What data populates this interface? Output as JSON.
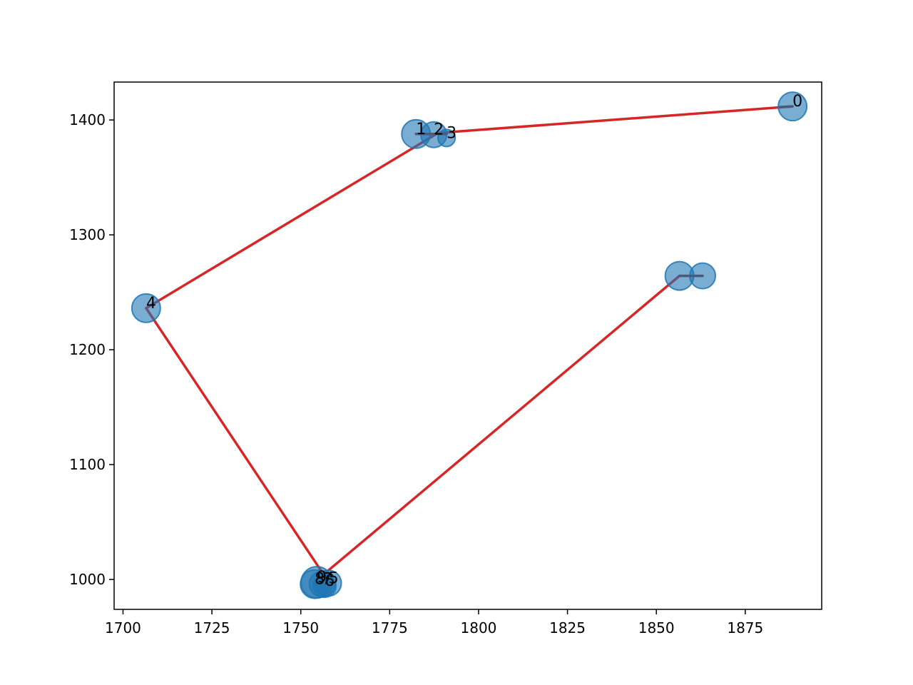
{
  "chart_data": {
    "type": "scatter",
    "title": "",
    "xlabel": "",
    "ylabel": "",
    "xlim": [
      1697.5,
      1896.5
    ],
    "ylim": [
      974,
      1433
    ],
    "x_ticks": [
      1700,
      1725,
      1750,
      1775,
      1800,
      1825,
      1850,
      1875
    ],
    "y_ticks": [
      1000,
      1100,
      1200,
      1300,
      1400
    ],
    "grid": false,
    "legend": "none",
    "points": [
      {
        "label": "0",
        "x": 1888.3,
        "y": 1411.8,
        "size": 20
      },
      {
        "label": "1",
        "x": 1782.4,
        "y": 1387.8,
        "size": 20
      },
      {
        "label": "2",
        "x": 1787.4,
        "y": 1387.2,
        "size": 18
      },
      {
        "label": "3",
        "x": 1791.0,
        "y": 1384.3,
        "size": 12
      },
      {
        "label": "4",
        "x": 1706.5,
        "y": 1236.2,
        "size": 20
      },
      {
        "label": "5",
        "x": 1757.8,
        "y": 996.8,
        "size": 18
      },
      {
        "label": "6",
        "x": 1756.7,
        "y": 994.4,
        "size": 16
      },
      {
        "label": "7",
        "x": 1756.0,
        "y": 996.0,
        "size": 18
      },
      {
        "label": "8",
        "x": 1753.9,
        "y": 996.0,
        "size": 20
      },
      {
        "label": "9",
        "x": 1754.5,
        "y": 997.5,
        "size": 22
      },
      {
        "label": "",
        "x": 1856.5,
        "y": 1264.3,
        "size": 20
      },
      {
        "label": "",
        "x": 1863.0,
        "y": 1264.3,
        "size": 18
      }
    ],
    "path": [
      {
        "x": 1888.3,
        "y": 1411.8
      },
      {
        "x": 1788.6,
        "y": 1388.7
      },
      {
        "x": 1706.5,
        "y": 1236.2
      },
      {
        "x": 1756.4,
        "y": 1004.4
      },
      {
        "x": 1856.5,
        "y": 1264.3
      }
    ],
    "dark_segments": [
      [
        {
          "x": 1888.3,
          "y": 1411.8
        },
        {
          "x": 1884.8,
          "y": 1411.3
        }
      ],
      [
        {
          "x": 1782.4,
          "y": 1387.8
        },
        {
          "x": 1791.0,
          "y": 1387.8
        }
      ],
      [
        {
          "x": 1856.5,
          "y": 1264.3
        },
        {
          "x": 1863.0,
          "y": 1264.3
        }
      ]
    ],
    "colors": {
      "marker_fill": "#1f77b4",
      "path_line": "#d62728",
      "dark_line": "#4b5a7a"
    }
  }
}
